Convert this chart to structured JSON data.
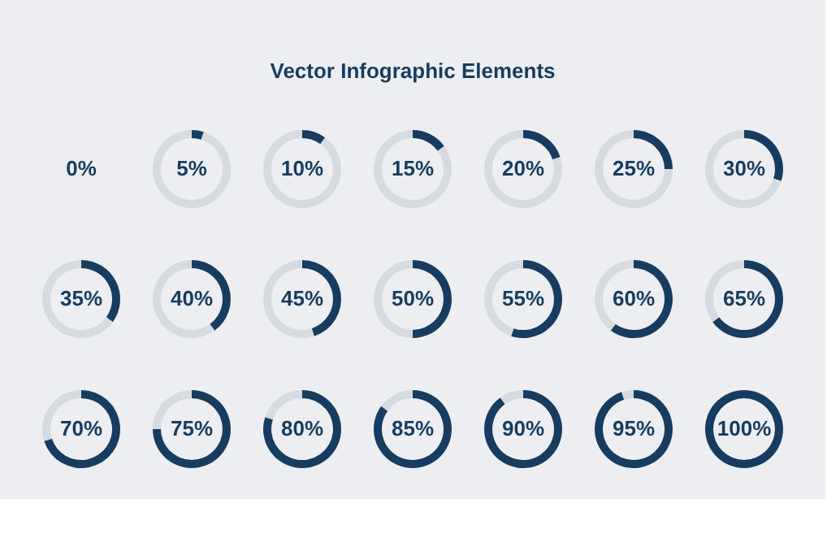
{
  "chart_data": [
    {
      "type": "other",
      "title": "Vector Infographic Elements",
      "annotations": [
        "0%"
      ]
    },
    {
      "type": "donut",
      "categories": [
        null,
        null
      ],
      "values": [
        5,
        95
      ],
      "colors": [
        "#163d5f",
        "#d6dbe2"
      ],
      "value_labels": [
        "5%",
        null
      ]
    },
    {
      "type": "donut",
      "categories": [
        null,
        null
      ],
      "values": [
        10,
        90
      ],
      "colors": [
        "#163d5f",
        "#d6dbe2"
      ],
      "value_labels": [
        "10%",
        null
      ]
    },
    {
      "type": "donut",
      "categories": [
        null,
        null
      ],
      "values": [
        15,
        85
      ],
      "colors": [
        "#163d5f",
        "#d6dbe2"
      ],
      "value_labels": [
        "15%",
        null
      ]
    },
    {
      "type": "donut",
      "categories": [
        null,
        null
      ],
      "values": [
        20,
        80
      ],
      "colors": [
        "#163d5f",
        "#d6dbe2"
      ],
      "value_labels": [
        "20%",
        null
      ]
    },
    {
      "type": "donut",
      "categories": [
        null,
        null
      ],
      "values": [
        25,
        75
      ],
      "colors": [
        "#163d5f",
        "#d6dbe2"
      ],
      "value_labels": [
        "25%",
        null
      ]
    },
    {
      "type": "donut",
      "categories": [
        null,
        null
      ],
      "values": [
        30,
        70
      ],
      "colors": [
        "#163d5f",
        "#d6dbe2"
      ],
      "value_labels": [
        "30%",
        null
      ]
    },
    {
      "type": "donut",
      "categories": [
        null,
        null
      ],
      "values": [
        35,
        65
      ],
      "colors": [
        "#163d5f",
        "#d6dbe2"
      ],
      "value_labels": [
        "35%",
        null
      ]
    },
    {
      "type": "donut",
      "categories": [
        null,
        null
      ],
      "values": [
        40,
        60
      ],
      "colors": [
        "#163d5f",
        "#d6dbe2"
      ],
      "value_labels": [
        "40%",
        null
      ]
    },
    {
      "type": "donut",
      "categories": [
        null,
        null
      ],
      "values": [
        45,
        55
      ],
      "colors": [
        "#163d5f",
        "#d6dbe2"
      ],
      "value_labels": [
        "45%",
        null
      ]
    },
    {
      "type": "donut",
      "categories": [
        null,
        null
      ],
      "values": [
        50,
        50
      ],
      "colors": [
        "#163d5f",
        "#d6dbe2"
      ],
      "value_labels": [
        "50%",
        null
      ]
    },
    {
      "type": "donut",
      "categories": [
        null,
        null
      ],
      "values": [
        55,
        45
      ],
      "colors": [
        "#163d5f",
        "#d6dbe2"
      ],
      "value_labels": [
        "55%",
        null
      ]
    },
    {
      "type": "donut",
      "categories": [
        null,
        null
      ],
      "values": [
        60,
        40
      ],
      "colors": [
        "#163d5f",
        "#d6dbe2"
      ],
      "value_labels": [
        "60%",
        null
      ]
    },
    {
      "type": "donut",
      "categories": [
        null,
        null
      ],
      "values": [
        65,
        35
      ],
      "colors": [
        "#163d5f",
        "#d6dbe2"
      ],
      "value_labels": [
        "65%",
        null
      ]
    },
    {
      "type": "donut",
      "categories": [
        null,
        null
      ],
      "values": [
        70,
        30
      ],
      "colors": [
        "#163d5f",
        "#d6dbe2"
      ],
      "value_labels": [
        "70%",
        null
      ]
    },
    {
      "type": "donut",
      "categories": [
        null,
        null
      ],
      "values": [
        75,
        25
      ],
      "colors": [
        "#163d5f",
        "#d6dbe2"
      ],
      "value_labels": [
        "75%",
        null
      ]
    },
    {
      "type": "donut",
      "categories": [
        null,
        null
      ],
      "values": [
        80,
        20
      ],
      "colors": [
        "#163d5f",
        "#d6dbe2"
      ],
      "value_labels": [
        "80%",
        null
      ]
    },
    {
      "type": "donut",
      "categories": [
        null,
        null
      ],
      "values": [
        85,
        15
      ],
      "colors": [
        "#163d5f",
        "#d6dbe2"
      ],
      "value_labels": [
        "85%",
        null
      ]
    },
    {
      "type": "donut",
      "categories": [
        null,
        null
      ],
      "values": [
        90,
        10
      ],
      "colors": [
        "#163d5f",
        "#d6dbe2"
      ],
      "value_labels": [
        "90%",
        null
      ]
    },
    {
      "type": "donut",
      "categories": [
        null,
        null
      ],
      "values": [
        95,
        5
      ],
      "colors": [
        "#163d5f",
        "#d6dbe2"
      ],
      "value_labels": [
        "95%",
        null
      ]
    },
    {
      "type": "donut",
      "categories": [
        null
      ],
      "values": [
        100
      ],
      "colors": [
        "#163d5f"
      ],
      "value_labels": [
        "100%"
      ]
    }
  ]
}
